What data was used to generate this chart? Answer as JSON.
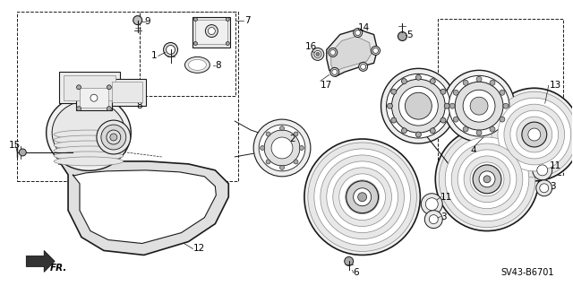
{
  "background_color": "#ffffff",
  "diagram_code": "SV43-B6701",
  "fig_width": 6.4,
  "fig_height": 3.19,
  "dpi": 100,
  "font_size_parts": 7.5,
  "font_size_note": 7.0,
  "line_color": "#1a1a1a",
  "gray_light": "#cccccc",
  "gray_mid": "#aaaaaa",
  "gray_dark": "#888888"
}
